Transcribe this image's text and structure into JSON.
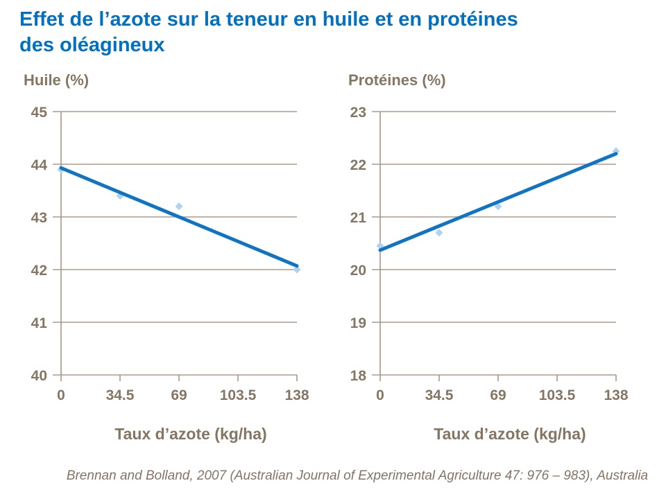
{
  "page": {
    "title_line1": "Effet de l’azote sur la teneur en huile et en protéines",
    "title_line2": "des oléagineux",
    "footer": "Brennan and Bolland, 2007 (Australian Journal of Experimental Agriculture 47: 976 – 983), Australia"
  },
  "colors": {
    "title_blue": "#0070c0",
    "trend_line": "#0f74c4",
    "marker": "#aed2f0",
    "axis_text": "#857663",
    "grid_line": "#a89c8d",
    "axis_line": "#a39685"
  },
  "chart_data": [
    {
      "type": "scatter",
      "title": "Huile (%)",
      "xlabel": "Taux d’azote (kg/ha)",
      "ylabel": "",
      "x": [
        0,
        34.5,
        69,
        138
      ],
      "y": [
        43.9,
        43.4,
        43.2,
        42.0
      ],
      "trendline": {
        "x": [
          0,
          138
        ],
        "y": [
          43.93,
          42.07
        ]
      },
      "xlim": [
        0,
        138
      ],
      "ylim": [
        40,
        45
      ],
      "xticks": [
        0,
        34.5,
        69,
        103.5,
        138
      ],
      "xtick_labels": [
        "0",
        "34.5",
        "69",
        "103.5",
        "138"
      ],
      "yticks": [
        40,
        41,
        42,
        43,
        44,
        45
      ],
      "ytick_labels": [
        "40",
        "41",
        "42",
        "43",
        "44",
        "45"
      ],
      "grid": "horizontal",
      "legend": "none"
    },
    {
      "type": "scatter",
      "title": "Protéines (%)",
      "xlabel": "Taux d’azote (kg/ha)",
      "ylabel": "",
      "x": [
        0,
        34.5,
        69,
        138
      ],
      "y": [
        20.45,
        20.7,
        21.2,
        22.25
      ],
      "trendline": {
        "x": [
          0,
          138
        ],
        "y": [
          20.37,
          22.2
        ]
      },
      "xlim": [
        0,
        138
      ],
      "ylim": [
        18,
        23
      ],
      "xticks": [
        0,
        34.5,
        69,
        103.5,
        138
      ],
      "xtick_labels": [
        "0",
        "34.5",
        "69",
        "103.5",
        "138"
      ],
      "yticks": [
        18,
        19,
        20,
        21,
        22,
        23
      ],
      "ytick_labels": [
        "18",
        "19",
        "20",
        "21",
        "22",
        "23"
      ],
      "grid": "horizontal",
      "legend": "none"
    }
  ]
}
